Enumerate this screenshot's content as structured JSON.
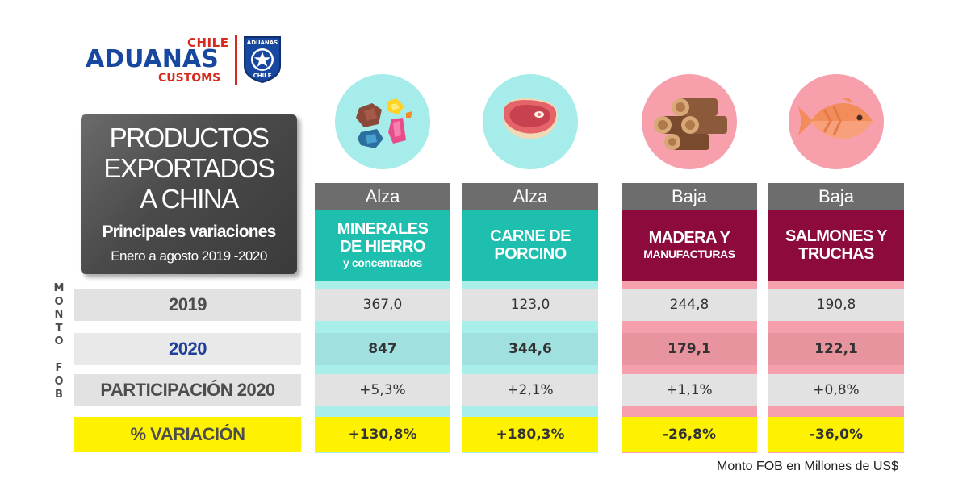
{
  "logo": {
    "chile": "CHILE",
    "aduanas": "ADUANAS",
    "customs": "CUSTOMS",
    "badge_top": "ADUANAS",
    "badge_bottom": "CHILE",
    "badge_icon": "star-shield-icon"
  },
  "title": {
    "line1": "PRODUCTOS",
    "line2": "EXPORTADOS",
    "line3": "A CHINA",
    "subtitle": "Principales variaciones",
    "range": "Enero a agosto 2019 -2020"
  },
  "side_label": [
    "M",
    "O",
    "N",
    "T",
    "O",
    "",
    "F",
    "O",
    "B"
  ],
  "row_labels": {
    "y2019": "2019",
    "y2020": "2020",
    "share": "PARTICIPACIÓN 2020",
    "variation": "% VARIACIÓN"
  },
  "products": [
    {
      "trend": "Alza",
      "name_l1": "MINERALES",
      "name_l2": "DE HIERRO",
      "name_small": "y concentrados",
      "icon": "minerals-icon",
      "y2019": "367,0",
      "y2020": "847",
      "share": "+5,3%",
      "variation": "+130,8%"
    },
    {
      "trend": "Alza",
      "name_l1": "CARNE DE",
      "name_l2": "PORCINO",
      "name_small": "",
      "icon": "meat-icon",
      "y2019": "123,0",
      "y2020": "344,6",
      "share": "+2,1%",
      "variation": "+180,3%"
    },
    {
      "trend": "Baja",
      "name_l1": "MADERA Y",
      "name_l2": "",
      "name_small": "MANUFACTURAS",
      "icon": "wood-logs-icon",
      "y2019": "244,8",
      "y2020": "179,1",
      "share": "+1,1%",
      "variation": "-26,8%"
    },
    {
      "trend": "Baja",
      "name_l1": "SALMONES Y",
      "name_l2": "TRUCHAS",
      "name_small": "",
      "icon": "fish-icon",
      "y2019": "190,8",
      "y2020": "122,1",
      "share": "+0,8%",
      "variation": "-36,0%"
    }
  ],
  "colors": {
    "up_name": "#1fbfb0",
    "up_strip": "#a8efea",
    "up_2020": "#a0e0de",
    "up_circle": "#a6ecea",
    "down_name": "#8c0a3c",
    "down_strip": "#f5a0ac",
    "down_2020": "#e8949f",
    "down_circle": "#f7a0ac",
    "highlight": "#fff200",
    "brand_blue": "#17479e",
    "brand_red": "#d52b1e"
  },
  "footnote": "Monto FOB en Millones de US$"
}
